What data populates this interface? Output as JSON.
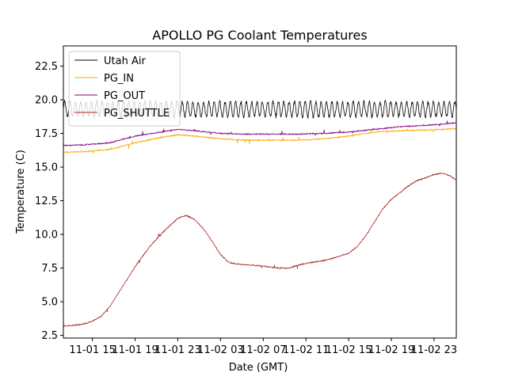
{
  "chart_data": {
    "type": "line",
    "title": "APOLLO PG Coolant Temperatures",
    "xlabel": "Date (GMT)",
    "ylabel": "Temperature (C)",
    "xlim": [
      9.3,
      32.3
    ],
    "ylim": [
      2.3,
      24.0
    ],
    "x_ticks": [
      {
        "x": 11,
        "label": "11-01 15"
      },
      {
        "x": 13.5,
        "label": "11-01 19"
      },
      {
        "x": 16,
        "label": "11-01 23"
      },
      {
        "x": 18.5,
        "label": "11-02 03"
      },
      {
        "x": 21,
        "label": "11-02 07"
      },
      {
        "x": 23.5,
        "label": "11-02 11"
      },
      {
        "x": 26,
        "label": "11-02 15"
      },
      {
        "x": 28.5,
        "label": "11-02 19"
      },
      {
        "x": 31,
        "label": "11-02 23"
      }
    ],
    "y_ticks": [
      {
        "y": 2.5,
        "label": "2.5"
      },
      {
        "y": 5.0,
        "label": "5.0"
      },
      {
        "y": 7.5,
        "label": "7.5"
      },
      {
        "y": 10.0,
        "label": "10.0"
      },
      {
        "y": 12.5,
        "label": "12.5"
      },
      {
        "y": 15.0,
        "label": "15.0"
      },
      {
        "y": 17.5,
        "label": "17.5"
      },
      {
        "y": 20.0,
        "label": "20.0"
      },
      {
        "y": 22.5,
        "label": "22.5"
      }
    ],
    "legend": "top-left",
    "series": [
      {
        "name": "Utah Air",
        "color": "#000000",
        "x": [
          9.3,
          32.3
        ],
        "y": [
          19.3,
          19.3
        ],
        "oscillation": 0.55
      },
      {
        "name": "PG_IN",
        "color": "#ffa500",
        "x": [
          9.3,
          10.5,
          12,
          13.5,
          15,
          16,
          17,
          18.5,
          20,
          21.5,
          23,
          24.5,
          26,
          27.5,
          29,
          30.5,
          31.5,
          32.3
        ],
        "y": [
          16.1,
          16.15,
          16.3,
          16.8,
          17.2,
          17.4,
          17.3,
          17.1,
          17.0,
          17.0,
          17.0,
          17.1,
          17.3,
          17.6,
          17.7,
          17.75,
          17.8,
          17.85
        ]
      },
      {
        "name": "PG_OUT",
        "color": "#800080",
        "x": [
          9.3,
          10.5,
          12,
          13.5,
          15,
          16,
          17,
          18.5,
          20,
          21.5,
          23,
          24.5,
          26,
          27.5,
          29,
          30.5,
          31.5,
          32.3
        ],
        "y": [
          16.6,
          16.65,
          16.8,
          17.3,
          17.6,
          17.8,
          17.7,
          17.5,
          17.45,
          17.45,
          17.45,
          17.5,
          17.6,
          17.8,
          18.0,
          18.1,
          18.2,
          18.3
        ]
      },
      {
        "name": "PG_SHUTTLE",
        "color": "#a52a2a",
        "x": [
          9.3,
          10,
          10.5,
          11,
          11.5,
          12,
          12.5,
          13,
          13.5,
          14,
          14.5,
          15,
          15.5,
          16,
          16.5,
          17,
          17.5,
          18,
          18.5,
          19,
          19.5,
          20,
          20.5,
          21,
          21.5,
          22,
          22.5,
          23,
          23.5,
          24,
          24.5,
          25,
          25.5,
          26,
          26.5,
          27,
          27.5,
          28,
          28.5,
          29,
          29.5,
          30,
          30.5,
          31,
          31.5,
          32,
          32.3
        ],
        "y": [
          3.2,
          3.25,
          3.35,
          3.55,
          3.9,
          4.6,
          5.6,
          6.6,
          7.6,
          8.5,
          9.3,
          10.0,
          10.6,
          11.2,
          11.4,
          11.1,
          10.4,
          9.5,
          8.5,
          7.9,
          7.8,
          7.75,
          7.7,
          7.65,
          7.55,
          7.5,
          7.5,
          7.7,
          7.85,
          7.95,
          8.05,
          8.2,
          8.4,
          8.6,
          9.1,
          9.9,
          10.9,
          11.9,
          12.6,
          13.1,
          13.6,
          14.0,
          14.2,
          14.45,
          14.55,
          14.3,
          14.0
        ]
      }
    ]
  }
}
